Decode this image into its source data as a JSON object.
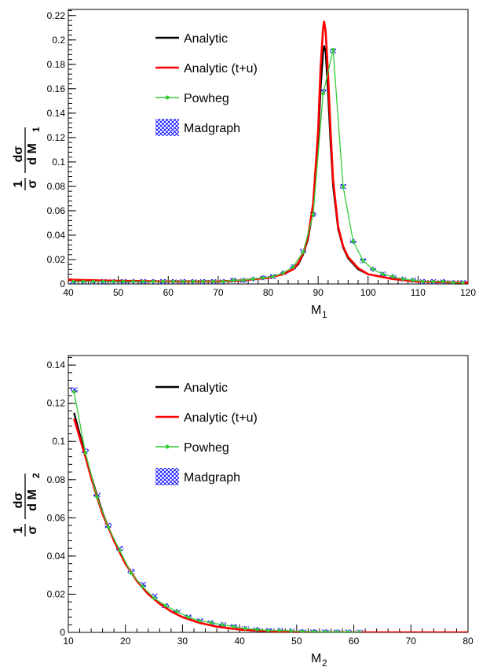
{
  "chart_data": [
    {
      "type": "line",
      "xlabel": "M",
      "xlabel_sub": "1",
      "ylabel": {
        "num": "1",
        "den": "σ",
        "dnum": "dσ",
        "dden": "d M",
        "sub": "1"
      },
      "xlim": [
        40,
        120
      ],
      "ylim": [
        0,
        0.225
      ],
      "x_ticks": [
        40,
        50,
        60,
        70,
        80,
        90,
        100,
        110,
        120
      ],
      "y_ticks": [
        0,
        0.02,
        0.04,
        0.06,
        0.08,
        0.1,
        0.12,
        0.14,
        0.16,
        0.18,
        0.2,
        0.22
      ],
      "grid": false,
      "legend": [
        {
          "name": "Analytic",
          "color": "#000000",
          "style": "line"
        },
        {
          "name": "Analytic (t+u)",
          "color": "#ff0000",
          "style": "line"
        },
        {
          "name": "Powheg",
          "color": "#33cc33",
          "style": "line-marker"
        },
        {
          "name": "Madgraph",
          "color": "#0000ff",
          "style": "hatch"
        }
      ],
      "series": [
        {
          "name": "Analytic",
          "color": "#000000",
          "x": [
            40,
            50,
            60,
            70,
            75,
            80,
            83,
            85,
            86,
            87,
            88,
            89,
            90,
            90.5,
            91,
            91.2,
            91.5,
            92,
            92.5,
            93,
            94,
            95,
            96,
            98,
            100,
            105,
            110,
            120
          ],
          "y": [
            0.003,
            0.002,
            0.002,
            0.002,
            0.003,
            0.005,
            0.008,
            0.012,
            0.016,
            0.024,
            0.037,
            0.062,
            0.115,
            0.16,
            0.19,
            0.195,
            0.19,
            0.155,
            0.115,
            0.08,
            0.045,
            0.03,
            0.021,
            0.012,
            0.008,
            0.004,
            0.002,
            0.001
          ]
        },
        {
          "name": "Analytic (t+u)",
          "color": "#ff0000",
          "x": [
            40,
            50,
            60,
            70,
            75,
            80,
            83,
            85,
            86,
            87,
            88,
            89,
            90,
            90.5,
            91,
            91.2,
            91.5,
            92,
            92.5,
            93,
            94,
            95,
            96,
            98,
            100,
            105,
            110,
            120
          ],
          "y": [
            0.0035,
            0.0025,
            0.002,
            0.002,
            0.003,
            0.005,
            0.008,
            0.012,
            0.017,
            0.025,
            0.039,
            0.066,
            0.125,
            0.178,
            0.21,
            0.215,
            0.207,
            0.17,
            0.125,
            0.085,
            0.047,
            0.031,
            0.022,
            0.013,
            0.008,
            0.004,
            0.002,
            0.001
          ]
        },
        {
          "name": "Powheg",
          "color": "#33cc33",
          "x": [
            41,
            43,
            45,
            47,
            49,
            51,
            53,
            55,
            57,
            59,
            61,
            63,
            65,
            67,
            69,
            71,
            73,
            75,
            77,
            79,
            81,
            83,
            85,
            87,
            89,
            91,
            93,
            95,
            97,
            99,
            101,
            103,
            105,
            107,
            109,
            111,
            113,
            115,
            117,
            119
          ],
          "y": [
            0.002,
            0.002,
            0.002,
            0.002,
            0.002,
            0.002,
            0.002,
            0.002,
            0.002,
            0.002,
            0.002,
            0.002,
            0.002,
            0.002,
            0.002,
            0.002,
            0.003,
            0.003,
            0.004,
            0.005,
            0.006,
            0.009,
            0.014,
            0.026,
            0.057,
            0.156,
            0.192,
            0.08,
            0.035,
            0.019,
            0.012,
            0.008,
            0.006,
            0.004,
            0.003,
            0.002,
            0.002,
            0.002,
            0.001,
            0.001
          ]
        },
        {
          "name": "Madgraph",
          "color": "#0000ff",
          "x": [
            41,
            43,
            45,
            47,
            49,
            51,
            53,
            55,
            57,
            59,
            61,
            63,
            65,
            67,
            69,
            71,
            73,
            75,
            77,
            79,
            81,
            83,
            85,
            87,
            89,
            91,
            93,
            95,
            97,
            99,
            101,
            103,
            105,
            107,
            109,
            111,
            113,
            115,
            117,
            119
          ],
          "y": [
            0.002,
            0.002,
            0.002,
            0.002,
            0.002,
            0.002,
            0.002,
            0.002,
            0.002,
            0.002,
            0.002,
            0.002,
            0.002,
            0.002,
            0.002,
            0.002,
            0.003,
            0.003,
            0.004,
            0.005,
            0.006,
            0.009,
            0.014,
            0.027,
            0.057,
            0.158,
            0.191,
            0.08,
            0.035,
            0.019,
            0.012,
            0.008,
            0.006,
            0.004,
            0.003,
            0.002,
            0.002,
            0.002,
            0.001,
            0.001
          ]
        }
      ]
    },
    {
      "type": "line",
      "xlabel": "M",
      "xlabel_sub": "2",
      "ylabel": {
        "num": "1",
        "den": "σ",
        "dnum": "dσ",
        "dden": "d M",
        "sub": "2"
      },
      "xlim": [
        10,
        80
      ],
      "ylim": [
        0,
        0.145
      ],
      "x_ticks": [
        10,
        20,
        30,
        40,
        50,
        60,
        70,
        80
      ],
      "y_ticks": [
        0,
        0.02,
        0.04,
        0.06,
        0.08,
        0.1,
        0.12,
        0.14
      ],
      "grid": false,
      "legend": [
        {
          "name": "Analytic",
          "color": "#000000",
          "style": "line"
        },
        {
          "name": "Analytic (t+u)",
          "color": "#ff0000",
          "style": "line"
        },
        {
          "name": "Powheg",
          "color": "#33cc33",
          "style": "line-marker"
        },
        {
          "name": "Madgraph",
          "color": "#0000ff",
          "style": "hatch"
        }
      ],
      "series": [
        {
          "name": "Analytic",
          "color": "#000000",
          "x": [
            11,
            12,
            13,
            14,
            15,
            16,
            17,
            18,
            19,
            20,
            22,
            24,
            26,
            28,
            30,
            33,
            36,
            40,
            45,
            50,
            60,
            70,
            80
          ],
          "y": [
            0.115,
            0.104,
            0.093,
            0.082,
            0.072,
            0.063,
            0.055,
            0.048,
            0.042,
            0.036,
            0.027,
            0.02,
            0.015,
            0.011,
            0.008,
            0.005,
            0.003,
            0.0015,
            0.0006,
            0.0002,
            0,
            0,
            0
          ]
        },
        {
          "name": "Analytic (t+u)",
          "color": "#ff0000",
          "x": [
            11,
            12,
            13,
            14,
            15,
            16,
            17,
            18,
            19,
            20,
            22,
            24,
            26,
            28,
            30,
            33,
            36,
            40,
            45,
            50,
            60,
            70,
            80
          ],
          "y": [
            0.112,
            0.102,
            0.092,
            0.081,
            0.071,
            0.062,
            0.055,
            0.048,
            0.042,
            0.036,
            0.027,
            0.02,
            0.015,
            0.011,
            0.008,
            0.005,
            0.003,
            0.0015,
            0.0006,
            0.0002,
            0,
            0,
            0
          ]
        },
        {
          "name": "Powheg",
          "color": "#33cc33",
          "x": [
            11,
            13,
            15,
            17,
            19,
            21,
            23,
            25,
            27,
            29,
            31,
            33,
            35,
            37,
            39,
            41,
            43,
            45,
            47,
            49,
            51,
            53,
            55,
            57,
            59,
            61
          ],
          "y": [
            0.126,
            0.094,
            0.071,
            0.055,
            0.043,
            0.031,
            0.024,
            0.018,
            0.014,
            0.011,
            0.008,
            0.006,
            0.005,
            0.004,
            0.003,
            0.002,
            0.0015,
            0.001,
            0.001,
            0.0008,
            0.0005,
            0.0004,
            0.0003,
            0.0002,
            0.0002,
            0.0001
          ]
        },
        {
          "name": "Madgraph",
          "color": "#0000ff",
          "x": [
            11,
            13,
            15,
            17,
            19,
            21,
            23,
            25,
            27,
            29,
            31,
            33,
            35,
            37,
            39,
            41,
            43,
            45,
            47,
            49,
            51,
            53,
            55,
            57,
            59,
            61
          ],
          "y": [
            0.127,
            0.095,
            0.072,
            0.056,
            0.044,
            0.032,
            0.025,
            0.019,
            0.014,
            0.011,
            0.008,
            0.006,
            0.005,
            0.004,
            0.003,
            0.002,
            0.0015,
            0.001,
            0.001,
            0.0008,
            0.0005,
            0.0004,
            0.0003,
            0.0002,
            0.0002,
            0.0001
          ]
        }
      ]
    }
  ]
}
